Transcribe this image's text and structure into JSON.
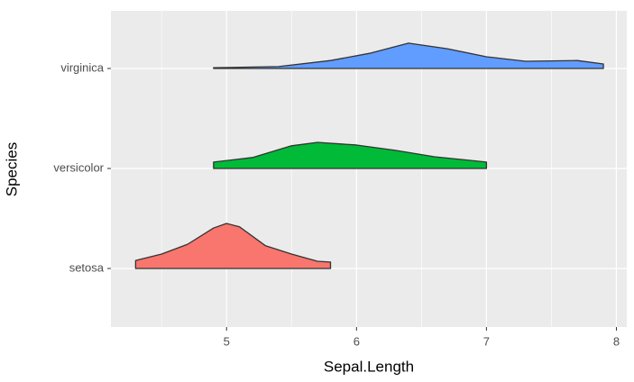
{
  "chart_data": {
    "type": "ridgeline",
    "xlabel": "Sepal.Length",
    "ylabel": "Species",
    "xlim": [
      4.11,
      8.08
    ],
    "xticks": [
      5,
      6,
      7,
      8
    ],
    "grid": true,
    "series": [
      {
        "name": "setosa",
        "color": "#f8766d",
        "x": [
          4.3,
          4.5,
          4.7,
          4.9,
          5.0,
          5.1,
          5.3,
          5.5,
          5.7,
          5.8
        ],
        "values": [
          0.21,
          0.38,
          0.64,
          1.07,
          1.19,
          1.1,
          0.6,
          0.38,
          0.19,
          0.17
        ]
      },
      {
        "name": "versicolor",
        "color": "#00ba38",
        "x": [
          4.9,
          5.2,
          5.5,
          5.7,
          6.0,
          6.3,
          6.6,
          7.0
        ],
        "values": [
          0.17,
          0.29,
          0.6,
          0.69,
          0.62,
          0.48,
          0.31,
          0.17
        ]
      },
      {
        "name": "virginica",
        "color": "#619cff",
        "x": [
          4.9,
          5.4,
          5.8,
          6.1,
          6.4,
          6.7,
          7.0,
          7.3,
          7.7,
          7.9
        ],
        "values": [
          0.02,
          0.05,
          0.21,
          0.4,
          0.67,
          0.52,
          0.31,
          0.19,
          0.21,
          0.12
        ]
      }
    ]
  }
}
